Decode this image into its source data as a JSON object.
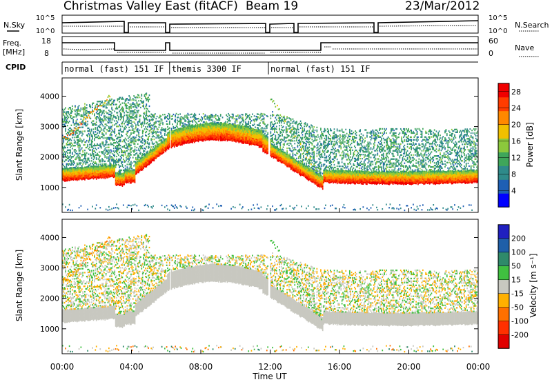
{
  "header": {
    "title": "Christmas Valley East (fitACF)",
    "beam": "Beam 19",
    "date": "23/Mar/2012"
  },
  "top_panels": {
    "nsky_label": "N.Sky",
    "nsearch_label": "N.Search",
    "nsky_ticks": [
      "10^5",
      "10^0"
    ],
    "nsearch_ticks": [
      "10^5",
      "10^0"
    ],
    "freq_label_1": "Freq.",
    "freq_label_2": "[MHz]",
    "freq_ticks": [
      "18",
      "8"
    ],
    "nave_label": "Nave",
    "nave_ticks": [
      "60",
      "0"
    ],
    "cpid_label": "CPID",
    "cpid_segments": [
      {
        "text": "normal (fast) 151 IF",
        "start_h": 0.0
      },
      {
        "text": "themis 3300 IF",
        "start_h": 6.2
      },
      {
        "text": "normal (fast) 151 IF",
        "start_h": 11.9
      }
    ]
  },
  "chart_data": [
    {
      "type": "heatmap",
      "name": "power",
      "xlabel": "Time UT",
      "ylabel": "Slant Range [km]",
      "x_ticks": [
        "00:00",
        "04:00",
        "08:00",
        "12:00",
        "16:00",
        "20:00",
        "00:00"
      ],
      "xlim_h": [
        0,
        24
      ],
      "y_ticks": [
        1000,
        2000,
        3000,
        4000
      ],
      "ylim_km": [
        180,
        4600
      ],
      "colorbar_label": "Power [dB]",
      "colorbar_ticks": [
        4,
        8,
        12,
        16,
        20,
        24,
        28
      ],
      "colorbar_range": [
        0,
        30
      ],
      "colors": [
        "#0000ff",
        "#1e5fb4",
        "#2f8a8a",
        "#3fa65a",
        "#8cc83c",
        "#f0c000",
        "#ff8800",
        "#ff3c00",
        "#f00000"
      ]
    },
    {
      "type": "heatmap",
      "name": "velocity",
      "xlabel": "Time UT",
      "ylabel": "Slant Range [km]",
      "x_ticks": [
        "00:00",
        "04:00",
        "08:00",
        "12:00",
        "16:00",
        "20:00",
        "00:00"
      ],
      "xlim_h": [
        0,
        24
      ],
      "y_ticks": [
        1000,
        2000,
        3000,
        4000
      ],
      "ylim_km": [
        180,
        4600
      ],
      "colorbar_label": "Velocity [m s⁻¹]",
      "colorbar_ticks": [
        200,
        100,
        50,
        15,
        -15,
        -50,
        -100,
        -200
      ],
      "colors": [
        "#2020c0",
        "#1f5fa8",
        "#2f8a6a",
        "#40c040",
        "#c8c8c0",
        "#ffb000",
        "#ff7000",
        "#ff3000",
        "#e00000"
      ]
    }
  ]
}
